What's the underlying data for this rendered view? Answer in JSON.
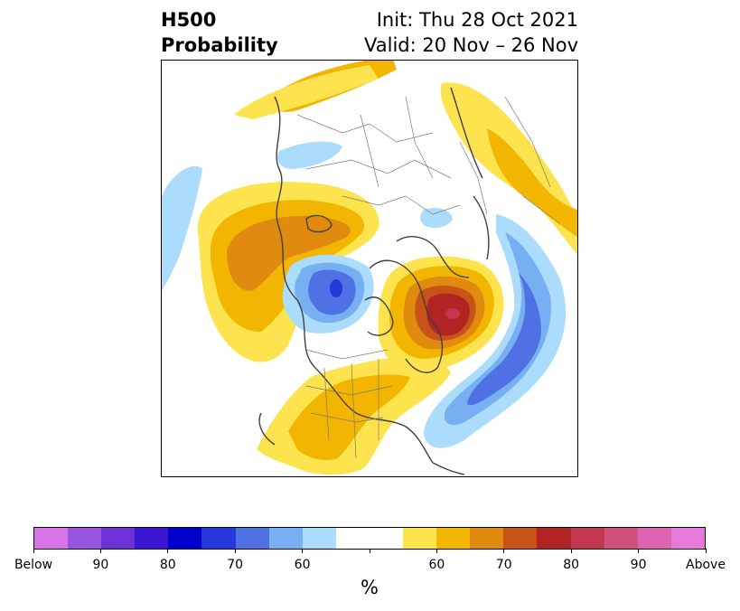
{
  "title": {
    "left_line1": "H500",
    "left_line2": "Probability",
    "right_line1": "Init: Thu 28 Oct 2021",
    "right_line2": "Valid: 20 Nov – 26 Nov"
  },
  "colorbar": {
    "unit_label": "%",
    "colors": [
      "#d674e8",
      "#9a55e0",
      "#6d33d9",
      "#3b17d4",
      "#0000cc",
      "#2638da",
      "#4f71e4",
      "#77b0f2",
      "#acdcfb",
      "#ffffff",
      "#ffffff",
      "#fde34e",
      "#f2b600",
      "#e08a10",
      "#c85318",
      "#b12423",
      "#c2364f",
      "#d0507e",
      "#dd64b0",
      "#e67ada"
    ],
    "tick_labels": [
      "Below",
      "90",
      "80",
      "70",
      "60",
      "",
      "60",
      "70",
      "80",
      "90",
      "Above"
    ]
  },
  "map": {
    "colors": {
      "above_light": "#fde34e",
      "above_mid": "#f2b600",
      "above_dark": "#e08a10",
      "above_darker": "#c85318",
      "above_deep": "#b12423",
      "above_top": "#c2364f",
      "below_light": "#acdcfb",
      "below_mid": "#77b0f2",
      "below_dark": "#4f71e4",
      "below_darker": "#2638da",
      "coast": "#404040",
      "border": "#7a7a7a"
    }
  }
}
